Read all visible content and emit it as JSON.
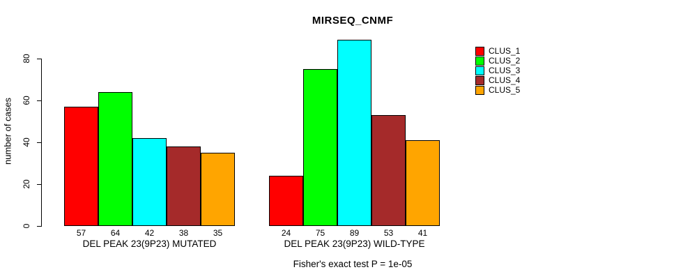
{
  "chart_data": {
    "type": "bar",
    "title": "MIRSEQ_CNMF",
    "ylabel": "number of cases",
    "xlabel": "",
    "yticks": [
      0,
      20,
      40,
      60,
      80
    ],
    "ylim": [
      0,
      89
    ],
    "grid": false,
    "legend_position": "right",
    "series": [
      {
        "name": "CLUS_1",
        "color": "#ff0000"
      },
      {
        "name": "CLUS_2",
        "color": "#00ff00"
      },
      {
        "name": "CLUS_3",
        "color": "#00ffff"
      },
      {
        "name": "CLUS_4",
        "color": "#a52a2a"
      },
      {
        "name": "CLUS_5",
        "color": "#ffa500"
      }
    ],
    "groups": [
      {
        "label": "DEL PEAK 23(9P23) MUTATED",
        "values": [
          57,
          64,
          42,
          38,
          35
        ]
      },
      {
        "label": "DEL PEAK 23(9P23) WILD-TYPE",
        "values": [
          24,
          75,
          89,
          53,
          41
        ]
      }
    ],
    "annotation": "Fisher's exact test P = 1e-05",
    "axis_color": "#000000",
    "background_color": "#ffffff"
  }
}
